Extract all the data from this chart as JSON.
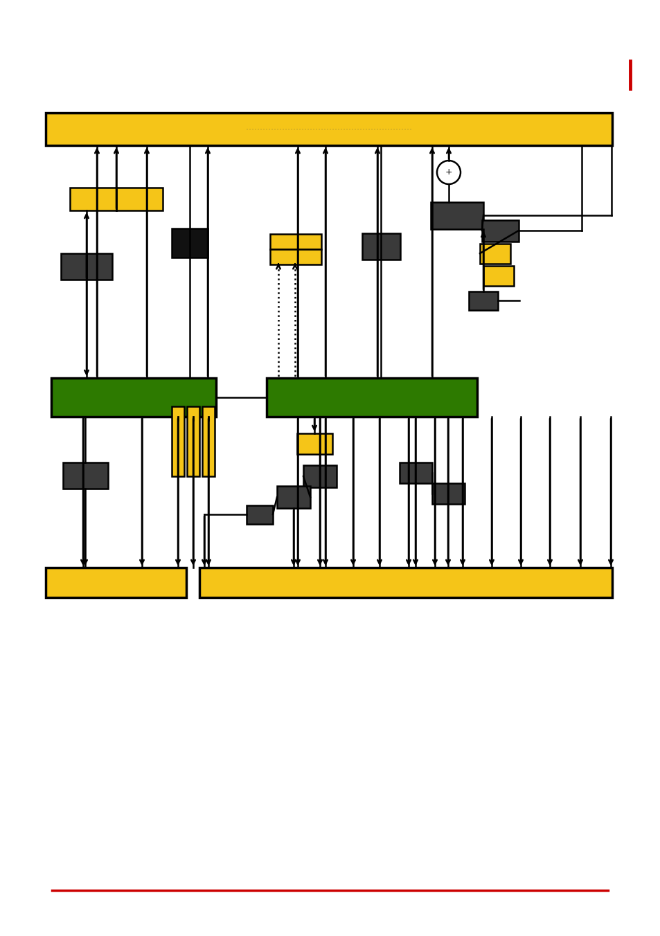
{
  "fig_width": 9.54,
  "fig_height": 13.52,
  "dpi": 100,
  "bg_color": "#ffffff",
  "orange": "#F5C518",
  "green": "#2D7A00",
  "dark": "#3A3A3A",
  "black": "#111111",
  "red": "#CC0000",
  "lw_main": 1.8,
  "lw_border": 2.2
}
